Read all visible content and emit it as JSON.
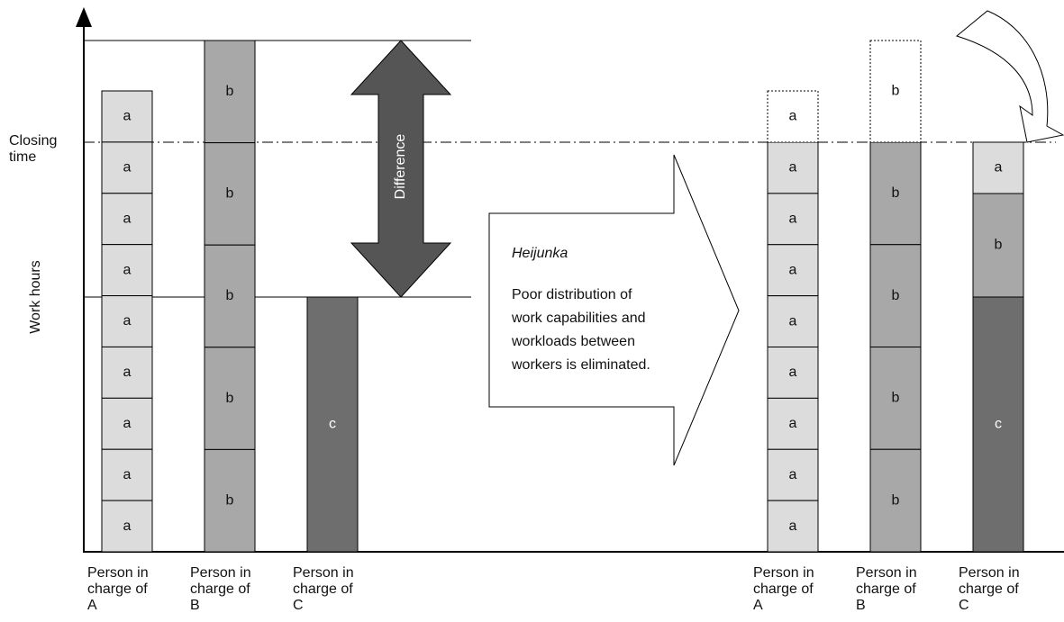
{
  "y_axis_label": "Work hours",
  "closing_time_label": [
    "Closing",
    "time"
  ],
  "difference_label": "Difference",
  "heijunka": {
    "title": "Heijunka",
    "text": [
      "Poor distribution of",
      "work capabilities and",
      "workloads between",
      "workers is eliminated."
    ]
  },
  "before": [
    {
      "blocks": [
        "a",
        "a",
        "a",
        "a",
        "a",
        "a",
        "a",
        "a",
        "a"
      ],
      "label": [
        "Person in",
        "charge of",
        "A"
      ]
    },
    {
      "blocks": [
        "b",
        "b",
        "b",
        "b",
        "b"
      ],
      "label": [
        "Person in",
        "charge of",
        "B"
      ]
    },
    {
      "blocks": [
        "c"
      ],
      "label": [
        "Person in",
        "charge of",
        "C"
      ]
    }
  ],
  "after": [
    {
      "overflow": "a",
      "blocks": [
        "a",
        "a",
        "a",
        "a",
        "a",
        "a",
        "a",
        "a"
      ],
      "label": [
        "Person in",
        "charge of",
        "A"
      ]
    },
    {
      "overflow": "b",
      "blocks": [
        "b",
        "b",
        "b",
        "b"
      ],
      "label": [
        "Person in",
        "charge of",
        "B"
      ]
    },
    {
      "blocks": [
        "a",
        "b",
        "c"
      ],
      "label": [
        "Person in",
        "charge of",
        "C"
      ]
    }
  ]
}
